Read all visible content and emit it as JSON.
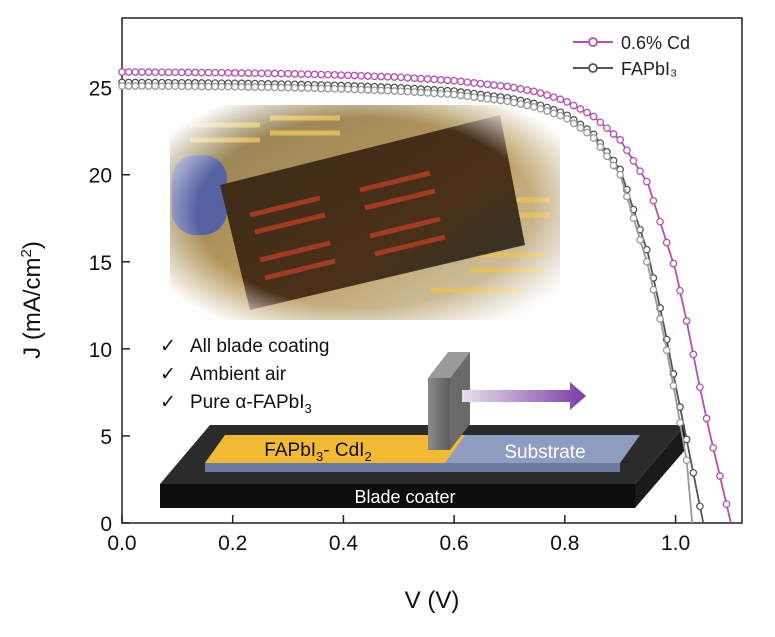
{
  "chart_data": {
    "type": "line",
    "xlabel": "V (V)",
    "ylabel_main": "J (mA/cm",
    "ylabel_sup": "2",
    "ylabel_close": ")",
    "xlim": [
      0.0,
      1.12
    ],
    "ylim": [
      0,
      29
    ],
    "xticks": [
      "0.0",
      "0.2",
      "0.4",
      "0.6",
      "0.8",
      "1.0"
    ],
    "yticks": [
      "0",
      "5",
      "10",
      "15",
      "20",
      "25"
    ],
    "legend_position": "top-right",
    "series": [
      {
        "name": "0.6% Cd",
        "color": "#b44fb4",
        "jsc": 25.9,
        "voc": 1.1,
        "x": [
          0.0,
          0.1,
          0.2,
          0.3,
          0.4,
          0.5,
          0.6,
          0.7,
          0.75,
          0.8,
          0.85,
          0.9,
          0.95,
          1.0,
          1.02,
          1.04,
          1.06,
          1.08,
          1.1
        ],
        "y": [
          25.9,
          25.88,
          25.85,
          25.8,
          25.72,
          25.6,
          25.4,
          25.05,
          24.75,
          24.25,
          23.4,
          22.0,
          19.5,
          14.5,
          11.6,
          8.4,
          5.4,
          2.7,
          0.0
        ]
      },
      {
        "name": "FAPbI₃",
        "color": "#555555",
        "jsc": 25.3,
        "voc": 1.05,
        "x": [
          0.0,
          0.1,
          0.2,
          0.3,
          0.4,
          0.5,
          0.6,
          0.7,
          0.75,
          0.8,
          0.85,
          0.9,
          0.95,
          0.98,
          1.0,
          1.02,
          1.04,
          1.05
        ],
        "y": [
          25.3,
          25.28,
          25.25,
          25.2,
          25.12,
          25.0,
          24.8,
          24.4,
          24.05,
          23.5,
          22.4,
          20.3,
          15.5,
          11.2,
          7.9,
          4.8,
          1.6,
          0.0
        ]
      },
      {
        "name": "",
        "color": "#9a9a9a",
        "x": [
          0.0,
          0.1,
          0.2,
          0.3,
          0.4,
          0.5,
          0.6,
          0.7,
          0.75,
          0.8,
          0.85,
          0.9,
          0.95,
          0.98,
          1.0,
          1.02,
          1.03
        ],
        "y": [
          25.1,
          25.08,
          25.05,
          25.0,
          24.92,
          24.8,
          24.6,
          24.2,
          23.85,
          23.3,
          22.2,
          20.0,
          14.8,
          10.6,
          7.2,
          3.6,
          0.0
        ]
      }
    ],
    "inset": {
      "checklist": [
        "All blade coating",
        "Ambient air",
        "Pure α-FAPbI"
      ],
      "checklist_sub": "3",
      "film_label": "FAPbI",
      "film_sub1": "3",
      "film_mid": "- CdI",
      "film_sub2": "2",
      "substrate_label": "Substrate",
      "coater_label": "Blade coater"
    }
  }
}
